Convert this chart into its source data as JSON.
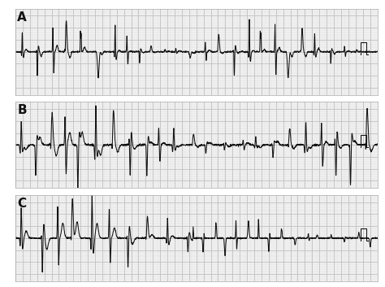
{
  "background_color": "#ffffff",
  "strip_bg": "#f7f7f7",
  "grid_minor_color": "#d8d8d8",
  "grid_major_color": "#c0c0c0",
  "ecg_color": "#111111",
  "label_color": "#111111",
  "labels": [
    "A",
    "B",
    "C"
  ],
  "fig_width": 4.74,
  "fig_height": 3.53,
  "dpi": 100,
  "label_fontsize": 11
}
